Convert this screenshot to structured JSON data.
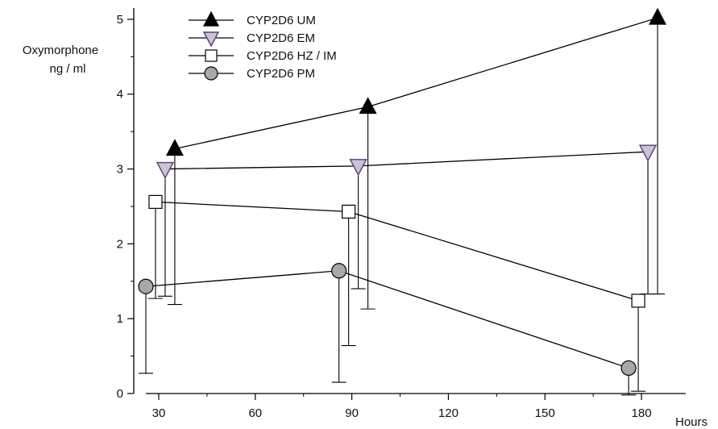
{
  "chart_data": {
    "type": "line",
    "ylabel": [
      "Oxymorphone",
      "ng / ml"
    ],
    "xlabel": "Hours",
    "xlim": [
      25,
      188
    ],
    "ylim": [
      0,
      5.15
    ],
    "x_ticks": [
      30,
      60,
      90,
      120,
      150,
      180
    ],
    "x_tick_labels": [
      "30",
      "60",
      "90",
      "120",
      "150",
      "180"
    ],
    "y_ticks": [
      0,
      1,
      2,
      3,
      4,
      5
    ],
    "y_tick_labels": [
      "0",
      "1",
      "2",
      "3",
      "4",
      "5"
    ],
    "grid": false,
    "legend_position": "top-left",
    "series": [
      {
        "name": "CYP2D6 UM",
        "marker": "triangle-up",
        "fill": "#000000",
        "x": [
          35,
          95,
          185
        ],
        "y": [
          3.27,
          3.83,
          5.02
        ],
        "error_direction": "down",
        "error_low": [
          1.19,
          1.13,
          1.33
        ]
      },
      {
        "name": "CYP2D6 EM",
        "marker": "triangle-down",
        "fill": "#c9c3d6",
        "stroke": "#5a3d6e",
        "x": [
          32,
          92,
          182
        ],
        "y": [
          3.0,
          3.04,
          3.23
        ],
        "error_direction": "down",
        "error_low": [
          1.3,
          1.4,
          1.33
        ]
      },
      {
        "name": "CYP2D6 HZ / IM",
        "marker": "square",
        "fill": "#ffffff",
        "x": [
          29,
          89,
          179
        ],
        "y": [
          2.56,
          2.43,
          1.24
        ],
        "error_direction": "down",
        "error_low": [
          1.27,
          0.64,
          0.03
        ]
      },
      {
        "name": "CYP2D6 PM",
        "marker": "circle",
        "fill": "#a8a8a8",
        "x": [
          26,
          86,
          176
        ],
        "y": [
          1.43,
          1.64,
          0.34
        ],
        "error_direction": "down",
        "error_low": [
          0.27,
          0.15,
          -0.02
        ]
      }
    ]
  }
}
